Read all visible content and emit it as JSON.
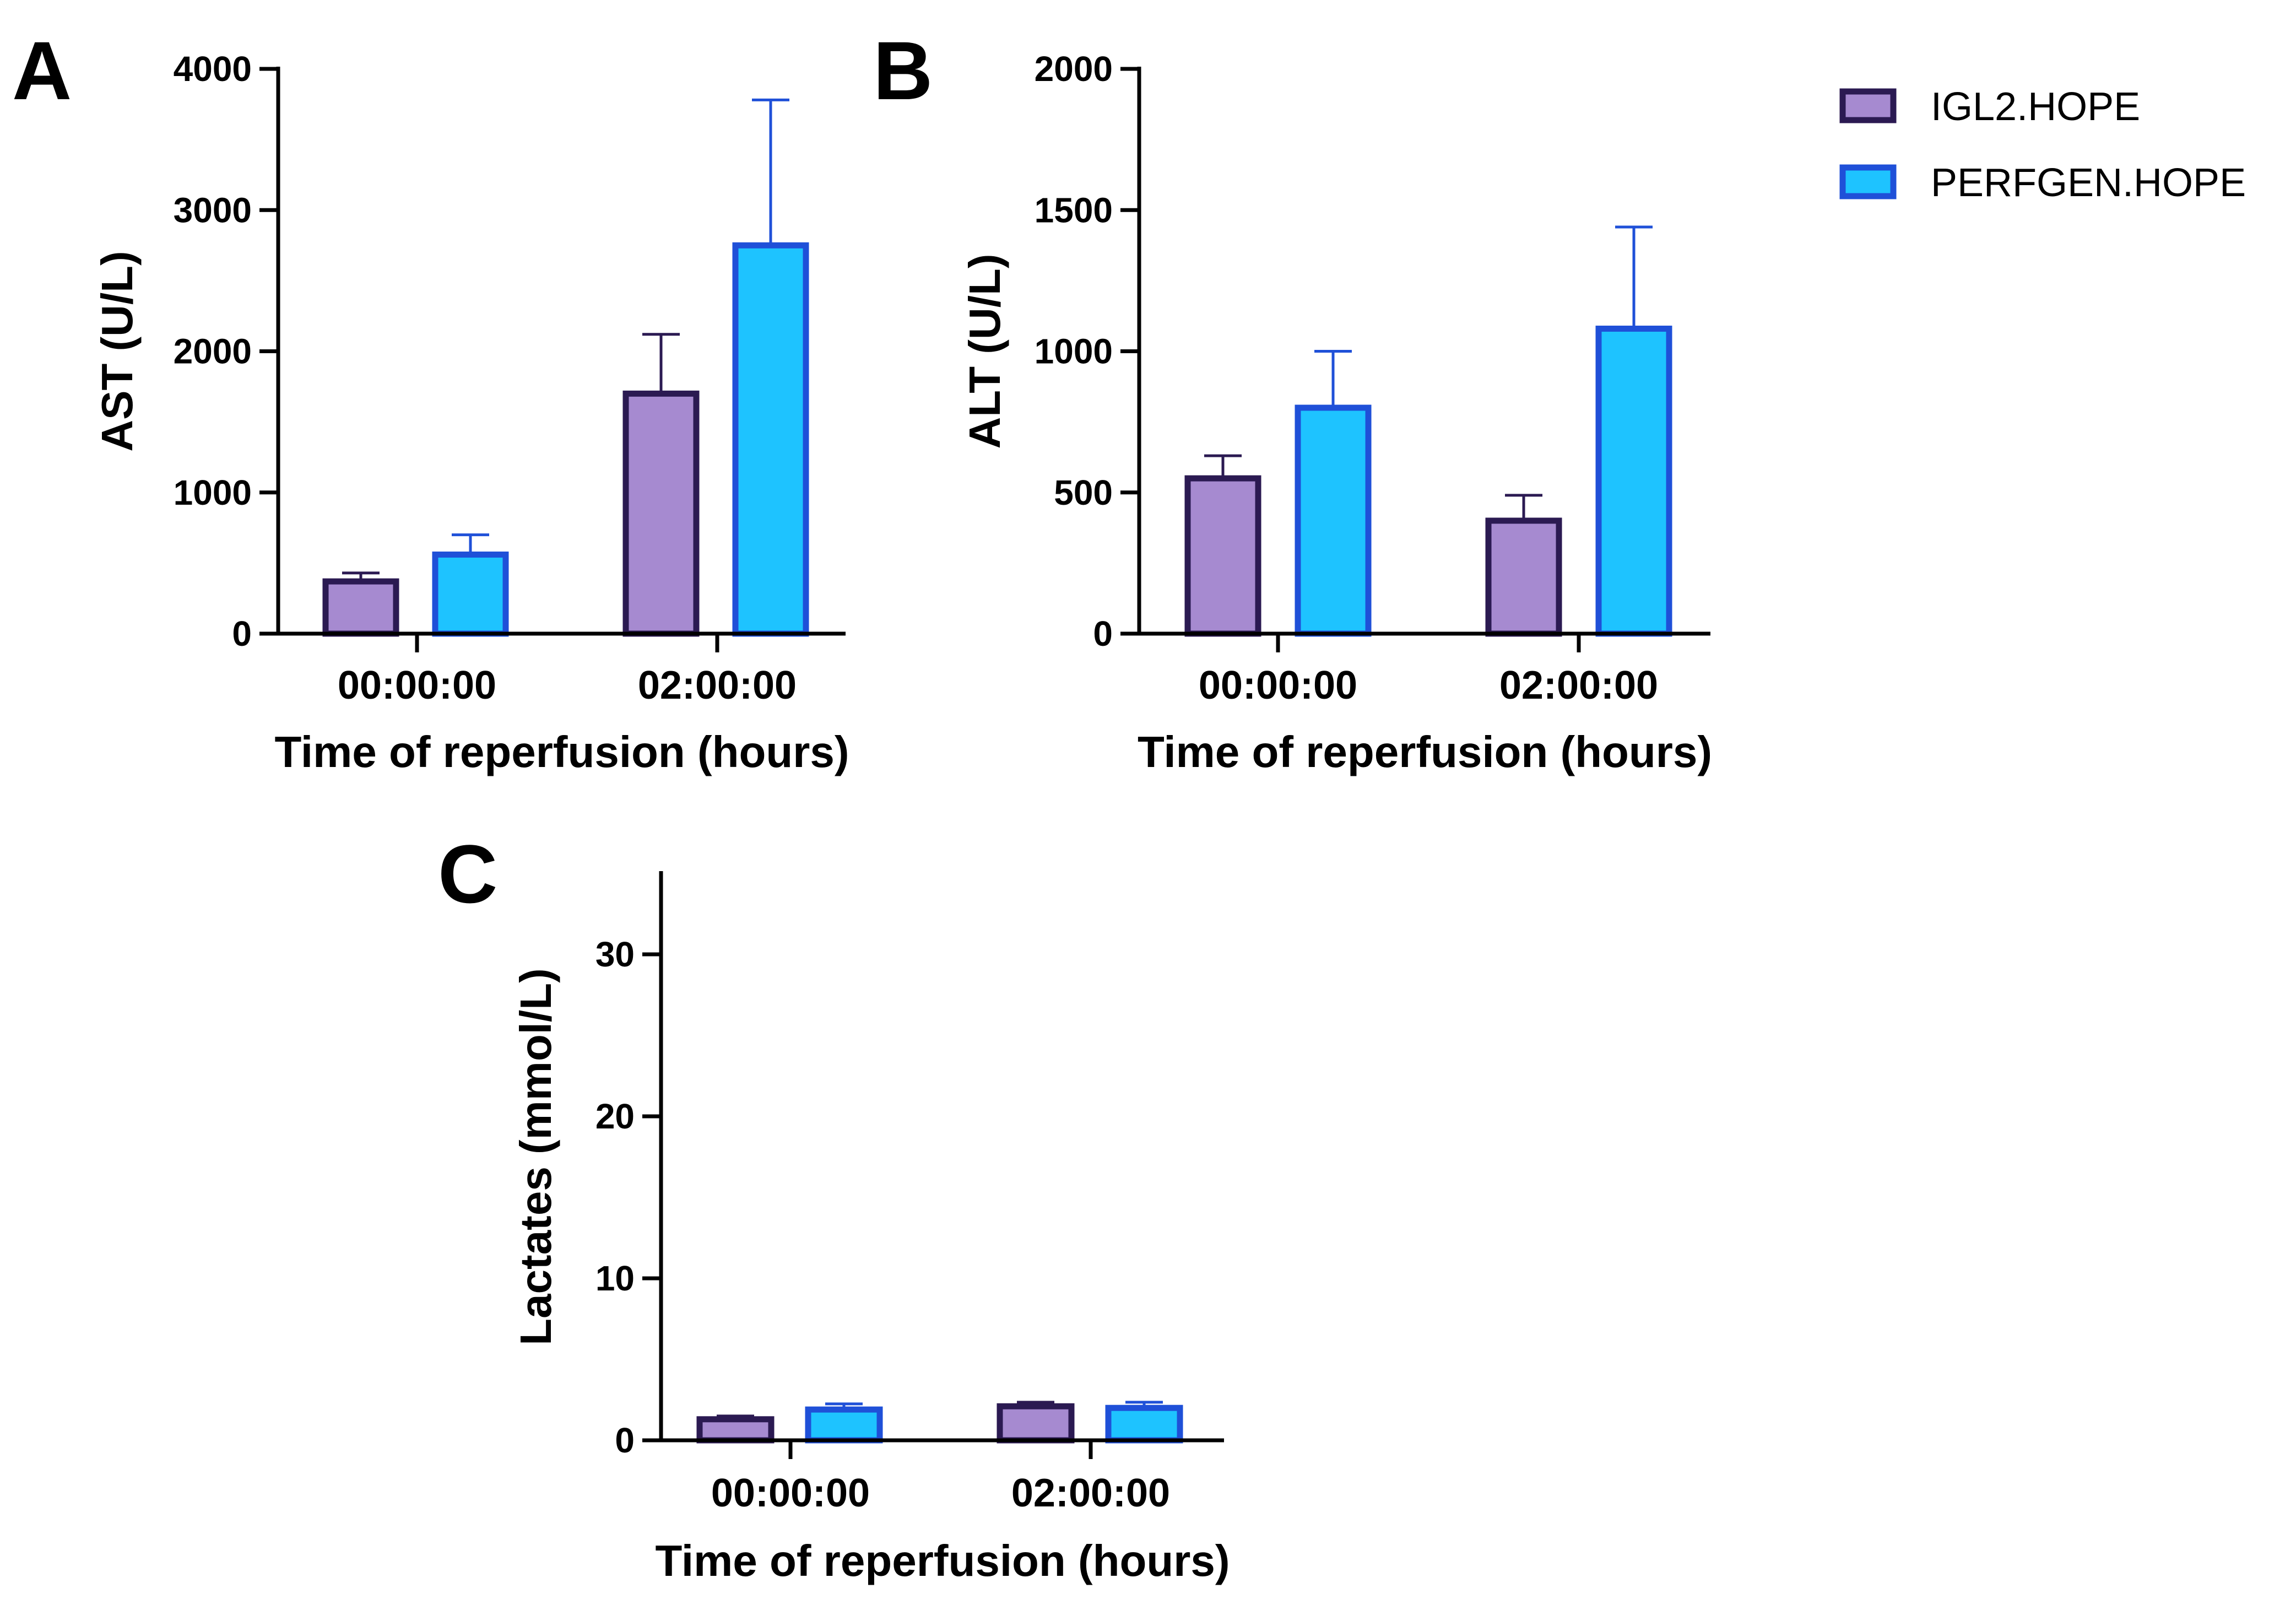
{
  "legend": {
    "entries": [
      {
        "name": "IGL2.HOPE",
        "fill": "#a68ad0",
        "stroke": "#2b1a52"
      },
      {
        "name": "PERFGEN.HOPE",
        "fill": "#1ec3ff",
        "stroke": "#1f50d8"
      }
    ]
  },
  "chart_data": [
    {
      "panel": "A",
      "type": "bar",
      "categories": [
        "00:00:00",
        "02:00:00"
      ],
      "series": [
        {
          "name": "IGL2.HOPE",
          "values": [
            370,
            1700
          ],
          "errors": [
            60,
            420
          ]
        },
        {
          "name": "PERFGEN.HOPE",
          "values": [
            560,
            2750
          ],
          "errors": [
            140,
            1030
          ]
        }
      ],
      "xlabel": "Time of reperfusion (hours)",
      "ylabel": "AST (U/L)",
      "ylim": [
        0,
        4000
      ],
      "yticks": [
        0,
        1000,
        2000,
        3000,
        4000
      ],
      "ytick_labels": [
        "0",
        "1000",
        "2000",
        "3000",
        "4000"
      ]
    },
    {
      "panel": "B",
      "type": "bar",
      "categories": [
        "00:00:00",
        "02:00:00"
      ],
      "series": [
        {
          "name": "IGL2.HOPE",
          "values": [
            550,
            400
          ],
          "errors": [
            80,
            90
          ]
        },
        {
          "name": "PERFGEN.HOPE",
          "values": [
            800,
            1080
          ],
          "errors": [
            200,
            360
          ]
        }
      ],
      "xlabel": "Time of reperfusion (hours)",
      "ylabel": "ALT (U/L)",
      "ylim": [
        0,
        2000
      ],
      "yticks": [
        0,
        500,
        1000,
        1500,
        2000
      ],
      "ytick_labels": [
        "0",
        "500",
        "1000",
        "1500",
        "2000"
      ]
    },
    {
      "panel": "C",
      "type": "bar",
      "categories": [
        "00:00:00",
        "02:00:00"
      ],
      "series": [
        {
          "name": "IGL2.HOPE",
          "values": [
            1.3,
            2.1
          ],
          "errors": [
            0.2,
            0.25
          ]
        },
        {
          "name": "PERFGEN.HOPE",
          "values": [
            1.9,
            2.0
          ],
          "errors": [
            0.35,
            0.35
          ]
        }
      ],
      "xlabel": "Time of reperfusion (hours)",
      "ylabel": "Lactates (mmol/L)",
      "ylim": [
        0,
        35
      ],
      "yticks": [
        0,
        10,
        20,
        30
      ],
      "ytick_labels": [
        "0",
        "10",
        "20",
        "30"
      ]
    }
  ]
}
